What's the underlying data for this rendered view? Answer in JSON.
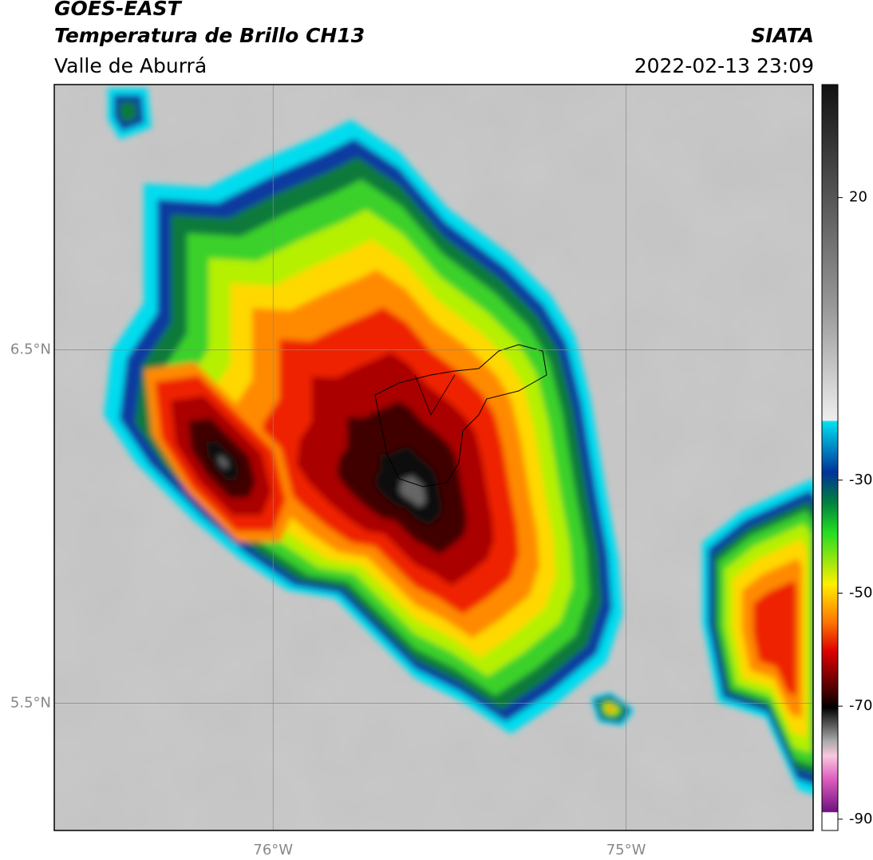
{
  "header": {
    "title": "GOES-EAST",
    "subtitle": "Temperatura de Brillo CH13",
    "region": "Valle de Aburrá",
    "source": "SIATA",
    "datetime": "2022-02-13 23:09"
  },
  "map": {
    "latlim": [
      5.14,
      7.25
    ],
    "lonlim": [
      -76.62,
      -74.47
    ],
    "lat_ticks": [
      {
        "value": 6.5,
        "label": "6.5°N"
      },
      {
        "value": 5.5,
        "label": "5.5°N"
      }
    ],
    "lon_ticks": [
      {
        "value": -76,
        "label": "76°W"
      },
      {
        "value": -75,
        "label": "75°W"
      }
    ]
  },
  "colorbar": {
    "clim": [
      -92,
      40
    ],
    "ticks": [
      20,
      -30,
      -50,
      -70,
      -90
    ]
  }
}
